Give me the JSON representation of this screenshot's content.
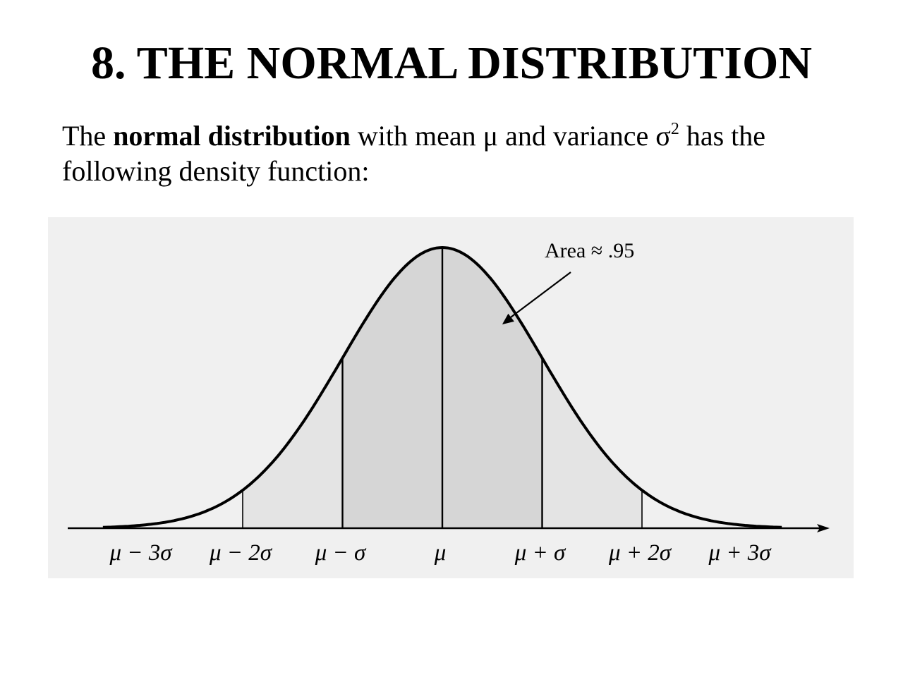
{
  "slide": {
    "title": "8. THE NORMAL DISTRIBUTION",
    "intro": {
      "prefix": "The ",
      "term": "normal distribution",
      "middle": " with mean μ and variance σ",
      "exponent": "2",
      "suffix": " has the following density function:"
    }
  },
  "chart_data": {
    "type": "area",
    "curve": "normal density",
    "x_ticks": [
      "μ − 3σ",
      "μ − 2σ",
      "μ − σ",
      "μ",
      "μ + σ",
      "μ + 2σ",
      "μ + 3σ"
    ],
    "x_tick_values": [
      -3,
      -2,
      -1,
      0,
      1,
      2,
      3
    ],
    "vertical_lines_at": [
      -2,
      -1,
      0,
      1,
      2
    ],
    "shaded_regions": [
      {
        "from": -2,
        "to": -1,
        "shade": "light"
      },
      {
        "from": -1,
        "to": 1,
        "shade": "dark"
      },
      {
        "from": 1,
        "to": 2,
        "shade": "light"
      }
    ],
    "annotation": {
      "text": "Area ≈ .95",
      "points_to_x": 0.6
    },
    "xlim": [
      -3.4,
      3.4
    ],
    "colors": {
      "background": "#f0f0f0",
      "shade_light": "#e4e4e4",
      "shade_dark": "#d6d6d6",
      "ink": "#000000"
    }
  }
}
